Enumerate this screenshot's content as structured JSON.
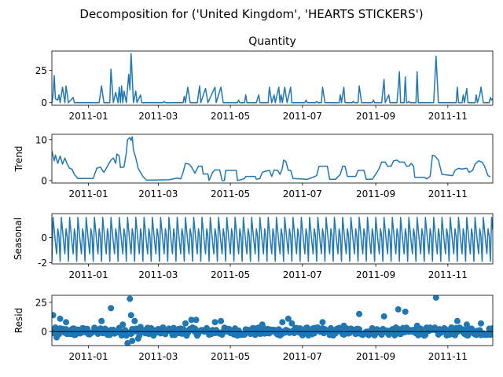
{
  "figure": {
    "suptitle": "Decomposition for ('United Kingdom', 'HEARTS  STICKERS')"
  },
  "chart_data": [
    {
      "type": "line",
      "title": "Quantity",
      "ylabel": "",
      "xlabel": "",
      "x_range": [
        "2010-12-01",
        "2011-12-09"
      ],
      "ylim": [
        -2,
        40
      ],
      "yticks": [
        0,
        25
      ],
      "xticks": [
        "2011-01",
        "2011-03",
        "2011-05",
        "2011-07",
        "2011-09",
        "2011-11"
      ],
      "color": "#1f77b4",
      "points": [
        [
          "2010-12-01",
          0
        ],
        [
          "2010-12-02",
          6
        ],
        [
          "2010-12-03",
          21
        ],
        [
          "2010-12-04",
          3
        ],
        [
          "2010-12-06",
          2
        ],
        [
          "2010-12-07",
          6
        ],
        [
          "2010-12-08",
          0
        ],
        [
          "2010-12-10",
          12
        ],
        [
          "2010-12-12",
          0
        ],
        [
          "2010-12-13",
          13
        ],
        [
          "2010-12-15",
          0
        ],
        [
          "2010-12-19",
          4
        ],
        [
          "2010-12-20",
          0
        ],
        [
          "2011-01-10",
          0
        ],
        [
          "2011-01-12",
          13
        ],
        [
          "2011-01-14",
          0
        ],
        [
          "2011-01-19",
          0
        ],
        [
          "2011-01-20",
          26
        ],
        [
          "2011-01-22",
          0
        ],
        [
          "2011-01-24",
          8
        ],
        [
          "2011-01-26",
          0
        ],
        [
          "2011-01-27",
          12
        ],
        [
          "2011-01-28",
          0
        ],
        [
          "2011-01-29",
          13
        ],
        [
          "2011-01-30",
          0
        ],
        [
          "2011-01-31",
          9
        ],
        [
          "2011-02-02",
          0
        ],
        [
          "2011-02-04",
          22
        ],
        [
          "2011-02-05",
          10
        ],
        [
          "2011-02-06",
          38
        ],
        [
          "2011-02-08",
          0
        ],
        [
          "2011-02-10",
          9
        ],
        [
          "2011-02-11",
          0
        ],
        [
          "2011-02-14",
          6
        ],
        [
          "2011-02-15",
          0
        ],
        [
          "2011-03-05",
          0
        ],
        [
          "2011-03-06",
          1
        ],
        [
          "2011-03-07",
          0
        ],
        [
          "2011-03-22",
          0
        ],
        [
          "2011-03-23",
          5
        ],
        [
          "2011-03-24",
          0
        ],
        [
          "2011-03-26",
          12
        ],
        [
          "2011-03-28",
          0
        ],
        [
          "2011-04-03",
          0
        ],
        [
          "2011-04-05",
          13
        ],
        [
          "2011-04-06",
          0
        ],
        [
          "2011-04-10",
          11
        ],
        [
          "2011-04-12",
          0
        ],
        [
          "2011-04-18",
          12
        ],
        [
          "2011-04-19",
          0
        ],
        [
          "2011-04-23",
          12
        ],
        [
          "2011-04-25",
          0
        ],
        [
          "2011-05-07",
          0
        ],
        [
          "2011-05-08",
          2
        ],
        [
          "2011-05-09",
          0
        ],
        [
          "2011-05-13",
          0
        ],
        [
          "2011-05-14",
          6
        ],
        [
          "2011-05-15",
          0
        ],
        [
          "2011-05-23",
          0
        ],
        [
          "2011-05-25",
          6
        ],
        [
          "2011-05-26",
          0
        ],
        [
          "2011-06-02",
          0
        ],
        [
          "2011-06-03",
          12
        ],
        [
          "2011-06-05",
          0
        ],
        [
          "2011-06-07",
          6
        ],
        [
          "2011-06-08",
          0
        ],
        [
          "2011-06-11",
          12
        ],
        [
          "2011-06-12",
          0
        ],
        [
          "2011-06-13",
          6
        ],
        [
          "2011-06-14",
          0
        ],
        [
          "2011-06-16",
          12
        ],
        [
          "2011-06-18",
          0
        ],
        [
          "2011-06-21",
          12
        ],
        [
          "2011-06-22",
          0
        ],
        [
          "2011-07-03",
          0
        ],
        [
          "2011-07-04",
          2
        ],
        [
          "2011-07-05",
          0
        ],
        [
          "2011-07-12",
          0
        ],
        [
          "2011-07-13",
          1
        ],
        [
          "2011-07-14",
          0
        ],
        [
          "2011-07-17",
          0
        ],
        [
          "2011-07-18",
          12
        ],
        [
          "2011-07-20",
          0
        ],
        [
          "2011-08-01",
          0
        ],
        [
          "2011-08-02",
          6
        ],
        [
          "2011-08-03",
          0
        ],
        [
          "2011-08-05",
          12
        ],
        [
          "2011-08-06",
          0
        ],
        [
          "2011-08-12",
          0
        ],
        [
          "2011-08-13",
          1
        ],
        [
          "2011-08-14",
          0
        ],
        [
          "2011-08-17",
          0
        ],
        [
          "2011-08-18",
          13
        ],
        [
          "2011-08-20",
          0
        ],
        [
          "2011-08-29",
          0
        ],
        [
          "2011-08-30",
          2
        ],
        [
          "2011-08-31",
          0
        ],
        [
          "2011-09-06",
          0
        ],
        [
          "2011-09-08",
          18
        ],
        [
          "2011-09-09",
          0
        ],
        [
          "2011-09-12",
          6
        ],
        [
          "2011-09-13",
          0
        ],
        [
          "2011-09-19",
          0
        ],
        [
          "2011-09-21",
          24
        ],
        [
          "2011-09-22",
          0
        ],
        [
          "2011-09-25",
          0
        ],
        [
          "2011-09-26",
          20
        ],
        [
          "2011-09-27",
          0
        ],
        [
          "2011-09-28",
          0
        ],
        [
          "2011-09-29",
          1
        ],
        [
          "2011-09-30",
          0
        ],
        [
          "2011-10-05",
          0
        ],
        [
          "2011-10-06",
          24
        ],
        [
          "2011-10-07",
          0
        ],
        [
          "2011-10-20",
          0
        ],
        [
          "2011-10-22",
          36
        ],
        [
          "2011-10-24",
          0
        ],
        [
          "2011-11-08",
          0
        ],
        [
          "2011-11-09",
          12
        ],
        [
          "2011-11-10",
          0
        ],
        [
          "2011-11-13",
          0
        ],
        [
          "2011-11-14",
          6
        ],
        [
          "2011-11-15",
          0
        ],
        [
          "2011-11-17",
          11
        ],
        [
          "2011-11-18",
          0
        ],
        [
          "2011-11-24",
          0
        ],
        [
          "2011-11-25",
          6
        ],
        [
          "2011-11-26",
          0
        ],
        [
          "2011-11-28",
          6
        ],
        [
          "2011-11-29",
          12
        ],
        [
          "2011-12-01",
          0
        ],
        [
          "2011-12-06",
          0
        ],
        [
          "2011-12-07",
          4
        ],
        [
          "2011-12-08",
          2
        ],
        [
          "2011-12-09",
          3
        ]
      ]
    },
    {
      "type": "line",
      "title": "",
      "ylabel": "Trend",
      "xlabel": "",
      "x_range": [
        "2010-12-01",
        "2011-12-09"
      ],
      "ylim": [
        -0.6,
        11.3
      ],
      "yticks": [
        0,
        10
      ],
      "xticks": [
        "2011-01",
        "2011-03",
        "2011-05",
        "2011-07",
        "2011-09",
        "2011-11"
      ],
      "color": "#1f77b4",
      "points": [
        [
          "2010-12-01",
          7.2
        ],
        [
          "2010-12-03",
          4.8
        ],
        [
          "2010-12-04",
          6.2
        ],
        [
          "2010-12-06",
          4.2
        ],
        [
          "2010-12-08",
          6.0
        ],
        [
          "2010-12-10",
          4.0
        ],
        [
          "2010-12-12",
          5.5
        ],
        [
          "2010-12-14",
          4.0
        ],
        [
          "2010-12-16",
          3.0
        ],
        [
          "2010-12-18",
          2.8
        ],
        [
          "2010-12-20",
          1.5
        ],
        [
          "2010-12-23",
          0.5
        ],
        [
          "2011-01-05",
          0.5
        ],
        [
          "2011-01-08",
          3.0
        ],
        [
          "2011-01-11",
          3.3
        ],
        [
          "2011-01-14",
          2.0
        ],
        [
          "2011-01-17",
          3.5
        ],
        [
          "2011-01-20",
          5.0
        ],
        [
          "2011-01-22",
          5.5
        ],
        [
          "2011-01-24",
          4.2
        ],
        [
          "2011-01-25",
          6.5
        ],
        [
          "2011-01-27",
          6.0
        ],
        [
          "2011-01-28",
          3.2
        ],
        [
          "2011-01-31",
          3.3
        ],
        [
          "2011-02-02",
          6.8
        ],
        [
          "2011-02-03",
          10.0
        ],
        [
          "2011-02-05",
          10.5
        ],
        [
          "2011-02-06",
          9.8
        ],
        [
          "2011-02-07",
          10.7
        ],
        [
          "2011-02-08",
          7.5
        ],
        [
          "2011-02-10",
          5.5
        ],
        [
          "2011-02-12",
          3.0
        ],
        [
          "2011-02-14",
          2.0
        ],
        [
          "2011-02-16",
          1.0
        ],
        [
          "2011-02-19",
          0.1
        ],
        [
          "2011-03-10",
          0.2
        ],
        [
          "2011-03-17",
          0.6
        ],
        [
          "2011-03-20",
          0.4
        ],
        [
          "2011-03-22",
          2.0
        ],
        [
          "2011-03-24",
          4.2
        ],
        [
          "2011-03-27",
          4.0
        ],
        [
          "2011-03-29",
          3.4
        ],
        [
          "2011-04-01",
          1.8
        ],
        [
          "2011-04-04",
          3.5
        ],
        [
          "2011-04-07",
          3.5
        ],
        [
          "2011-04-08",
          1.6
        ],
        [
          "2011-04-12",
          1.6
        ],
        [
          "2011-04-13",
          0.0
        ],
        [
          "2011-04-16",
          2.0
        ],
        [
          "2011-04-18",
          2.6
        ],
        [
          "2011-04-22",
          2.6
        ],
        [
          "2011-04-24",
          0.0
        ],
        [
          "2011-04-26",
          0.0
        ],
        [
          "2011-04-27",
          2.5
        ],
        [
          "2011-05-06",
          2.5
        ],
        [
          "2011-05-07",
          0.0
        ],
        [
          "2011-05-10",
          0.2
        ],
        [
          "2011-05-13",
          0.5
        ],
        [
          "2011-05-14",
          1.0
        ],
        [
          "2011-05-22",
          1.0
        ],
        [
          "2011-05-23",
          0.3
        ],
        [
          "2011-05-26",
          0.5
        ],
        [
          "2011-05-28",
          2.0
        ],
        [
          "2011-05-31",
          2.3
        ],
        [
          "2011-06-03",
          2.5
        ],
        [
          "2011-06-05",
          1.0
        ],
        [
          "2011-06-07",
          2.6
        ],
        [
          "2011-06-10",
          2.5
        ],
        [
          "2011-06-12",
          1.5
        ],
        [
          "2011-06-14",
          3.0
        ],
        [
          "2011-06-15",
          5.0
        ],
        [
          "2011-06-17",
          4.6
        ],
        [
          "2011-06-19",
          2.5
        ],
        [
          "2011-06-21",
          2.5
        ],
        [
          "2011-06-23",
          0.5
        ],
        [
          "2011-07-05",
          0.3
        ],
        [
          "2011-07-09",
          0.7
        ],
        [
          "2011-07-13",
          1.2
        ],
        [
          "2011-07-15",
          3.5
        ],
        [
          "2011-07-22",
          3.5
        ],
        [
          "2011-07-24",
          0.3
        ],
        [
          "2011-07-29",
          0.3
        ],
        [
          "2011-08-02",
          1.5
        ],
        [
          "2011-08-04",
          3.5
        ],
        [
          "2011-08-06",
          3.5
        ],
        [
          "2011-08-08",
          1.0
        ],
        [
          "2011-08-15",
          1.0
        ],
        [
          "2011-08-17",
          2.5
        ],
        [
          "2011-08-22",
          2.5
        ],
        [
          "2011-08-24",
          0.3
        ],
        [
          "2011-08-29",
          0.3
        ],
        [
          "2011-09-02",
          2.0
        ],
        [
          "2011-09-04",
          3.0
        ],
        [
          "2011-09-06",
          4.5
        ],
        [
          "2011-09-09",
          4.5
        ],
        [
          "2011-09-11",
          3.5
        ],
        [
          "2011-09-14",
          3.5
        ],
        [
          "2011-09-16",
          4.8
        ],
        [
          "2011-09-19",
          5.0
        ],
        [
          "2011-09-21",
          4.5
        ],
        [
          "2011-09-25",
          4.5
        ],
        [
          "2011-09-27",
          3.5
        ],
        [
          "2011-09-29",
          3.5
        ],
        [
          "2011-10-01",
          4.2
        ],
        [
          "2011-10-03",
          3.5
        ],
        [
          "2011-10-04",
          0.8
        ],
        [
          "2011-10-12",
          0.8
        ],
        [
          "2011-10-14",
          0.4
        ],
        [
          "2011-10-17",
          1.0
        ],
        [
          "2011-10-19",
          6.2
        ],
        [
          "2011-10-21",
          6.0
        ],
        [
          "2011-10-24",
          5.0
        ],
        [
          "2011-10-27",
          1.5
        ],
        [
          "2011-11-05",
          1.2
        ],
        [
          "2011-11-07",
          2.5
        ],
        [
          "2011-11-10",
          3.0
        ],
        [
          "2011-11-13",
          2.8
        ],
        [
          "2011-11-17",
          3.0
        ],
        [
          "2011-11-19",
          2.0
        ],
        [
          "2011-11-22",
          2.5
        ],
        [
          "2011-11-24",
          4.0
        ],
        [
          "2011-11-27",
          4.8
        ],
        [
          "2011-11-30",
          4.5
        ],
        [
          "2011-12-02",
          3.5
        ],
        [
          "2011-12-05",
          1.2
        ],
        [
          "2011-12-07",
          0.9
        ]
      ]
    },
    {
      "type": "line",
      "title": "",
      "ylabel": "Seasonal",
      "xlabel": "",
      "x_range": [
        "2010-12-01",
        "2011-12-09"
      ],
      "ylim": [
        -2.1,
        1.9
      ],
      "yticks": [
        -2,
        0
      ],
      "xticks": [
        "2011-01",
        "2011-03",
        "2011-05",
        "2011-07",
        "2011-09",
        "2011-11"
      ],
      "color": "#1f77b4",
      "period_days": 7,
      "pattern": [
        -1.9,
        1.6,
        0.6,
        -0.4,
        -1.3,
        0.7,
        0.1
      ]
    },
    {
      "type": "scatter",
      "title": "",
      "ylabel": "Resid",
      "xlabel": "",
      "x_range": [
        "2010-12-01",
        "2011-12-09"
      ],
      "ylim": [
        -12,
        31
      ],
      "yticks": [
        0,
        25
      ],
      "xticks": [
        "2011-01",
        "2011-03",
        "2011-05",
        "2011-07",
        "2011-09",
        "2011-11"
      ],
      "color": "#1f77b4",
      "baseline": 0,
      "outliers": [
        [
          "2010-12-02",
          14
        ],
        [
          "2010-12-05",
          -5
        ],
        [
          "2010-12-08",
          11
        ],
        [
          "2010-12-13",
          8
        ],
        [
          "2010-12-20",
          -3
        ],
        [
          "2011-01-12",
          9
        ],
        [
          "2011-01-20",
          20
        ],
        [
          "2011-01-30",
          6
        ],
        [
          "2011-02-03",
          -10
        ],
        [
          "2011-02-05",
          28
        ],
        [
          "2011-02-06",
          14
        ],
        [
          "2011-02-07",
          -8
        ],
        [
          "2011-02-09",
          9
        ],
        [
          "2011-02-12",
          -6
        ],
        [
          "2011-02-14",
          4
        ],
        [
          "2011-03-24",
          7
        ],
        [
          "2011-03-29",
          10
        ],
        [
          "2011-04-02",
          10
        ],
        [
          "2011-04-18",
          8
        ],
        [
          "2011-04-23",
          9
        ],
        [
          "2011-05-28",
          6
        ],
        [
          "2011-06-14",
          8
        ],
        [
          "2011-06-19",
          11
        ],
        [
          "2011-06-22",
          7
        ],
        [
          "2011-07-18",
          8
        ],
        [
          "2011-08-05",
          5
        ],
        [
          "2011-08-18",
          15
        ],
        [
          "2011-09-08",
          13
        ],
        [
          "2011-09-20",
          19
        ],
        [
          "2011-09-26",
          17
        ],
        [
          "2011-10-06",
          5
        ],
        [
          "2011-10-22",
          29
        ],
        [
          "2011-11-09",
          9
        ],
        [
          "2011-11-17",
          6
        ],
        [
          "2011-11-29",
          7
        ]
      ]
    }
  ]
}
